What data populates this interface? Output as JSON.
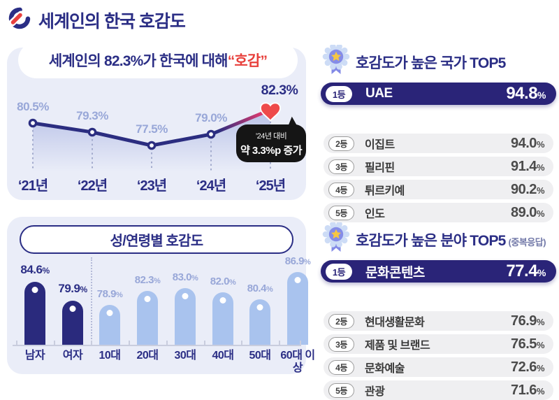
{
  "page": {
    "title": "세계인의 한국 호감도"
  },
  "colors": {
    "navy": "#2a2478",
    "navy_text": "#2b2e85",
    "red_accent": "#e8403c",
    "pink_line": "#e73a6e",
    "heart_red": "#ee4a4a",
    "panel_lavender": "#eaedf8",
    "light_bar_blue": "#a9c3ee",
    "muted_label_blue": "#98a7d8",
    "gray_row": "#efeff1"
  },
  "chart_data": [
    {
      "type": "line",
      "title_prefix": "세계인의 82.3%가 한국에 대해 ",
      "title_highlight": "“호감”",
      "x": [
        "‘21년",
        "‘22년",
        "‘23년",
        "‘24년",
        "‘25년"
      ],
      "values": [
        80.5,
        79.3,
        77.5,
        79.0,
        82.3
      ],
      "unit": "%",
      "ylim": [
        75,
        85
      ],
      "grid": false,
      "annotation": {
        "line1": "’24년 대비",
        "line2": "약 3.3%p 증가"
      },
      "last_point_marker": "heart-icon"
    },
    {
      "type": "bar",
      "title": "성/연령별 호감도",
      "categories": [
        "남자",
        "여자",
        "10대",
        "20대",
        "30대",
        "40대",
        "50대",
        "60대 이상"
      ],
      "values": [
        84.6,
        79.9,
        78.9,
        82.3,
        83.0,
        82.0,
        80.4,
        86.9
      ],
      "unit": "%",
      "highlight_first_n": 2,
      "ylim": [
        70,
        90
      ]
    }
  ],
  "rankings": [
    {
      "title": "호감도가 높은 국가 TOP5",
      "suffix": "",
      "items": [
        {
          "rank": "1등",
          "name": "UAE",
          "value": "94.8"
        },
        {
          "rank": "2등",
          "name": "이집트",
          "value": "94.0"
        },
        {
          "rank": "3등",
          "name": "필리핀",
          "value": "91.4"
        },
        {
          "rank": "4등",
          "name": "튀르키예",
          "value": "90.2"
        },
        {
          "rank": "5등",
          "name": "인도",
          "value": "89.0"
        }
      ]
    },
    {
      "title": "호감도가 높은 분야 TOP5",
      "suffix": "(중복응답)",
      "items": [
        {
          "rank": "1등",
          "name": "문화콘텐츠",
          "value": "77.4"
        },
        {
          "rank": "2등",
          "name": "현대생활문화",
          "value": "76.9"
        },
        {
          "rank": "3등",
          "name": "제품 및 브랜드",
          "value": "76.5"
        },
        {
          "rank": "4등",
          "name": "문화예술",
          "value": "72.6"
        },
        {
          "rank": "5등",
          "name": "관광",
          "value": "71.6"
        }
      ]
    }
  ]
}
